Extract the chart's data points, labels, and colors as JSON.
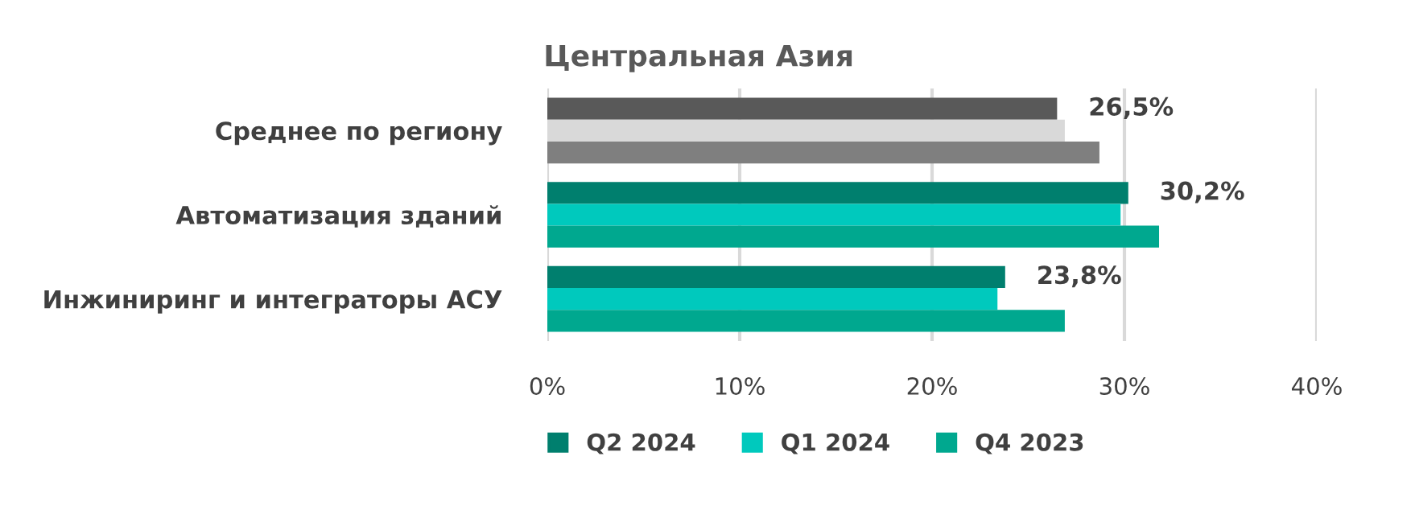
{
  "chart_data": {
    "type": "bar",
    "orientation": "horizontal",
    "title": "Центральная Азия",
    "categories": [
      "Среднее по региону",
      "Автоматизация зданий",
      "Инжиниринг и интеграторы АСУ"
    ],
    "series": [
      {
        "name": "Q2 2024",
        "color": "#007f6e",
        "colors": [
          "#595959",
          "#007f6e",
          "#007f6e"
        ],
        "values": [
          26.5,
          30.2,
          23.8
        ],
        "value_labels": [
          "26,5%",
          "30,2%",
          "23,8%"
        ]
      },
      {
        "name": "Q1 2024",
        "color": "#00c9bd",
        "colors": [
          "#d9d9d9",
          "#00c9bd",
          "#00c9bd"
        ],
        "values": [
          26.9,
          29.8,
          23.4
        ]
      },
      {
        "name": "Q4 2023",
        "color": "#00a88f",
        "colors": [
          "#7f7f7f",
          "#00a88f",
          "#00a88f"
        ],
        "values": [
          28.7,
          31.8,
          26.9
        ]
      }
    ],
    "xlim": [
      0,
      40
    ],
    "xticks": [
      {
        "value": 0,
        "label": "0%"
      },
      {
        "value": 10,
        "label": "10%"
      },
      {
        "value": 20,
        "label": "20%"
      },
      {
        "value": 30,
        "label": "30%"
      },
      {
        "value": 40,
        "label": "40%"
      }
    ],
    "grid": "x",
    "legend": "bottom"
  }
}
